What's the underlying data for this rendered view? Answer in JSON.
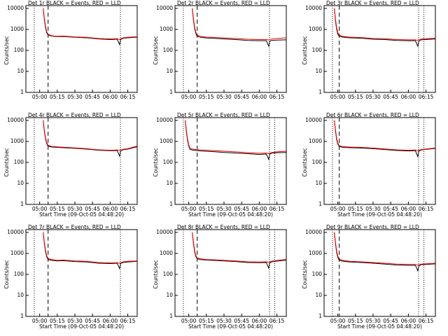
{
  "chart_data": [
    {
      "type": "line",
      "title": "Det 1r BLACK = Events, RED = LLD",
      "ylabel": "Counts/sec",
      "log_y": true,
      "x": [
        303,
        304,
        305,
        306,
        307,
        310,
        315,
        320,
        330,
        340,
        350,
        360,
        366,
        368,
        369,
        371,
        375,
        383
      ],
      "series": [
        {
          "color": "#000000",
          "values": [
            10000,
            3000,
            1200,
            700,
            550,
            480,
            450,
            460,
            420,
            400,
            350,
            330,
            340,
            190,
            330,
            380,
            400,
            430
          ]
        },
        {
          "color": "#ff0000",
          "values": [
            10000,
            3500,
            1400,
            800,
            600,
            500,
            470,
            480,
            440,
            420,
            370,
            350,
            360,
            330,
            360,
            400,
            420,
            450
          ]
        }
      ],
      "xlim": [
        288.3,
        383
      ],
      "ylim": [
        1,
        10000
      ],
      "xticks": [
        {
          "value": 300,
          "label": "05:00"
        },
        {
          "value": 315,
          "label": "05:15"
        },
        {
          "value": 330,
          "label": "05:30"
        },
        {
          "value": 345,
          "label": "05:45"
        },
        {
          "value": 360,
          "label": "06:00"
        },
        {
          "value": 375,
          "label": "06:15"
        }
      ],
      "yticks": [
        1,
        10,
        100,
        1000,
        10000
      ],
      "vlines": [
        {
          "x": 295.4,
          "style": "dotted"
        },
        {
          "x": 307.2,
          "style": "dashed"
        },
        {
          "x": 368.7,
          "style": "dotted"
        }
      ]
    },
    {
      "type": "line",
      "title": "Det 2r BLACK = Events, RED = LLD",
      "ylabel": "Counts/sec",
      "log_y": true,
      "x": [
        303,
        304,
        305,
        306,
        307,
        310,
        315,
        320,
        330,
        340,
        350,
        360,
        366,
        368,
        369,
        371,
        375,
        383
      ],
      "series": [
        {
          "color": "#000000",
          "values": [
            10000,
            2800,
            1100,
            650,
            480,
            420,
            390,
            380,
            350,
            330,
            300,
            290,
            290,
            160,
            280,
            300,
            310,
            320
          ]
        },
        {
          "color": "#ff0000",
          "values": [
            10000,
            3300,
            1300,
            750,
            540,
            470,
            430,
            420,
            390,
            370,
            340,
            330,
            330,
            310,
            330,
            350,
            370,
            400
          ]
        }
      ],
      "xlim": [
        288.3,
        383
      ],
      "ylim": [
        1,
        10000
      ],
      "xticks": [
        {
          "value": 300,
          "label": "05:00"
        },
        {
          "value": 315,
          "label": "05:15"
        },
        {
          "value": 330,
          "label": "05:30"
        },
        {
          "value": 345,
          "label": "05:45"
        },
        {
          "value": 360,
          "label": "06:00"
        },
        {
          "value": 375,
          "label": "06:15"
        }
      ],
      "yticks": [
        1,
        10,
        100,
        1000,
        10000
      ],
      "vlines": [
        {
          "x": 295.4,
          "style": "dotted"
        },
        {
          "x": 307.2,
          "style": "dashed"
        },
        {
          "x": 368.7,
          "style": "dotted"
        }
      ]
    },
    {
      "type": "line",
      "title": "Det 3r BLACK = Events, RED = LLD",
      "ylabel": "Counts/sec",
      "log_y": true,
      "x": [
        297,
        298,
        299,
        300,
        301,
        304,
        310,
        320,
        330,
        340,
        350,
        360,
        366,
        368,
        369,
        371,
        375,
        383
      ],
      "series": [
        {
          "color": "#000000",
          "values": [
            10000,
            2500,
            1000,
            600,
            480,
            430,
            400,
            380,
            340,
            330,
            300,
            290,
            290,
            160,
            280,
            320,
            330,
            350
          ]
        },
        {
          "color": "#ff0000",
          "values": [
            10000,
            3000,
            1200,
            700,
            540,
            470,
            430,
            410,
            370,
            360,
            330,
            320,
            320,
            300,
            320,
            350,
            360,
            380
          ]
        }
      ],
      "xlim": [
        288.3,
        383
      ],
      "ylim": [
        1,
        10000
      ],
      "xticks": [
        {
          "value": 300,
          "label": "05:00"
        },
        {
          "value": 315,
          "label": "05:15"
        },
        {
          "value": 330,
          "label": "05:30"
        },
        {
          "value": 345,
          "label": "05:45"
        },
        {
          "value": 360,
          "label": "06:00"
        },
        {
          "value": 375,
          "label": "06:15"
        }
      ],
      "yticks": [
        1,
        10,
        100,
        1000,
        10000
      ],
      "vlines": [
        {
          "x": 295.4,
          "style": "dotted"
        },
        {
          "x": 301.2,
          "style": "dashed"
        },
        {
          "x": 368.7,
          "style": "dotted"
        },
        {
          "x": 373.2,
          "style": "dotted"
        }
      ]
    },
    {
      "type": "line",
      "title": "Det 4r BLACK = Events, RED = LLD",
      "ylabel": "Counts/sec",
      "xlabel": "Start Time (09-Oct-05 04:48:20)",
      "log_y": true,
      "x": [
        303,
        304,
        305,
        306,
        307,
        310,
        315,
        320,
        330,
        340,
        350,
        360,
        366,
        368,
        369,
        371,
        375,
        383
      ],
      "series": [
        {
          "color": "#000000",
          "values": [
            10000,
            3000,
            1300,
            800,
            600,
            540,
            520,
            500,
            470,
            430,
            380,
            360,
            370,
            200,
            360,
            400,
            430,
            560
          ]
        },
        {
          "color": "#ff0000",
          "values": [
            10000,
            3500,
            1500,
            900,
            660,
            580,
            550,
            530,
            490,
            450,
            400,
            380,
            390,
            370,
            380,
            420,
            450,
            600
          ]
        }
      ],
      "xlim": [
        288.3,
        383
      ],
      "ylim": [
        1,
        10000
      ],
      "xticks": [
        {
          "value": 300,
          "label": "05:00"
        },
        {
          "value": 315,
          "label": "05:15"
        },
        {
          "value": 330,
          "label": "05:30"
        },
        {
          "value": 345,
          "label": "05:45"
        },
        {
          "value": 360,
          "label": "06:00"
        },
        {
          "value": 375,
          "label": "06:15"
        }
      ],
      "yticks": [
        1,
        10,
        100,
        1000,
        10000
      ],
      "vlines": [
        {
          "x": 295.4,
          "style": "dotted"
        },
        {
          "x": 307.2,
          "style": "dashed"
        },
        {
          "x": 368.7,
          "style": "dotted"
        }
      ]
    },
    {
      "type": "line",
      "title": "Det 5r BLACK = Events, RED = LLD",
      "ylabel": "Counts/sec",
      "xlabel": "Start Time (09-Oct-05 04:48:20)",
      "log_y": true,
      "x": [
        297,
        298,
        299,
        300,
        301,
        304,
        310,
        320,
        330,
        340,
        350,
        360,
        366,
        368,
        369,
        371,
        375,
        383
      ],
      "series": [
        {
          "color": "#000000",
          "values": [
            10000,
            2800,
            1100,
            600,
            420,
            380,
            350,
            330,
            300,
            280,
            260,
            240,
            250,
            140,
            250,
            280,
            290,
            300
          ]
        },
        {
          "color": "#ff0000",
          "values": [
            10000,
            3300,
            1300,
            700,
            470,
            420,
            390,
            370,
            340,
            320,
            290,
            270,
            280,
            260,
            280,
            300,
            320,
            340
          ]
        }
      ],
      "xlim": [
        288.3,
        383
      ],
      "ylim": [
        1,
        10000
      ],
      "xticks": [
        {
          "value": 300,
          "label": "05:00"
        },
        {
          "value": 315,
          "label": "05:15"
        },
        {
          "value": 330,
          "label": "05:30"
        },
        {
          "value": 345,
          "label": "05:45"
        },
        {
          "value": 360,
          "label": "06:00"
        },
        {
          "value": 375,
          "label": "06:15"
        }
      ],
      "yticks": [
        1,
        10,
        100,
        1000,
        10000
      ],
      "vlines": [
        {
          "x": 295.4,
          "style": "dotted"
        },
        {
          "x": 307.2,
          "style": "dashed"
        },
        {
          "x": 368.7,
          "style": "dotted"
        },
        {
          "x": 373.2,
          "style": "dotted"
        }
      ]
    },
    {
      "type": "line",
      "title": "Det 6r BLACK = Events, RED = LLD",
      "ylabel": "Counts/sec",
      "xlabel": "Start Time (09-Oct-05 04:48:20)",
      "log_y": true,
      "x": [
        297,
        298,
        299,
        300,
        301,
        304,
        310,
        320,
        330,
        340,
        350,
        360,
        366,
        368,
        369,
        371,
        375,
        383
      ],
      "series": [
        {
          "color": "#000000",
          "values": [
            10000,
            3000,
            1200,
            750,
            580,
            520,
            500,
            480,
            450,
            410,
            370,
            350,
            360,
            190,
            350,
            390,
            420,
            460
          ]
        },
        {
          "color": "#ff0000",
          "values": [
            10000,
            3500,
            1400,
            850,
            640,
            570,
            540,
            520,
            480,
            440,
            400,
            380,
            390,
            360,
            380,
            410,
            440,
            480
          ]
        }
      ],
      "xlim": [
        288.3,
        383
      ],
      "ylim": [
        1,
        10000
      ],
      "xticks": [
        {
          "value": 300,
          "label": "05:00"
        },
        {
          "value": 315,
          "label": "05:15"
        },
        {
          "value": 330,
          "label": "05:30"
        },
        {
          "value": 345,
          "label": "05:45"
        },
        {
          "value": 360,
          "label": "06:00"
        },
        {
          "value": 375,
          "label": "06:15"
        }
      ],
      "yticks": [
        1,
        10,
        100,
        1000,
        10000
      ],
      "vlines": [
        {
          "x": 295.4,
          "style": "dotted"
        },
        {
          "x": 301.2,
          "style": "dashed"
        },
        {
          "x": 368.7,
          "style": "dotted"
        },
        {
          "x": 373.2,
          "style": "dotted"
        }
      ]
    },
    {
      "type": "line",
      "title": "Det 7r BLACK = Events, RED = LLD",
      "ylabel": "Counts/sec",
      "xlabel": "Start Time (09-Oct-05 04:48:20)",
      "log_y": true,
      "x": [
        303,
        304,
        305,
        306,
        307,
        310,
        315,
        320,
        330,
        340,
        350,
        360,
        366,
        368,
        369,
        371,
        375,
        383
      ],
      "series": [
        {
          "color": "#000000",
          "values": [
            10000,
            3000,
            1200,
            700,
            520,
            470,
            440,
            450,
            410,
            390,
            340,
            330,
            340,
            190,
            330,
            370,
            390,
            420
          ]
        },
        {
          "color": "#ff0000",
          "values": [
            10000,
            3500,
            1400,
            800,
            580,
            510,
            470,
            480,
            440,
            420,
            370,
            350,
            360,
            340,
            360,
            400,
            420,
            440
          ]
        }
      ],
      "xlim": [
        288.3,
        383
      ],
      "ylim": [
        1,
        10000
      ],
      "xticks": [
        {
          "value": 300,
          "label": "05:00"
        },
        {
          "value": 315,
          "label": "05:15"
        },
        {
          "value": 330,
          "label": "05:30"
        },
        {
          "value": 345,
          "label": "05:45"
        },
        {
          "value": 360,
          "label": "06:00"
        },
        {
          "value": 375,
          "label": "06:15"
        }
      ],
      "yticks": [
        1,
        10,
        100,
        1000,
        10000
      ],
      "vlines": [
        {
          "x": 295.4,
          "style": "dotted"
        },
        {
          "x": 307.2,
          "style": "dashed"
        },
        {
          "x": 368.7,
          "style": "dotted"
        }
      ]
    },
    {
      "type": "line",
      "title": "Det 8r BLACK = Events, RED = LLD",
      "ylabel": "Counts/sec",
      "xlabel": "Start Time (09-Oct-05 04:48:20)",
      "log_y": true,
      "x": [
        303,
        304,
        305,
        306,
        307,
        310,
        315,
        320,
        330,
        340,
        350,
        360,
        366,
        368,
        369,
        371,
        375,
        383
      ],
      "series": [
        {
          "color": "#000000",
          "values": [
            10000,
            3000,
            1200,
            720,
            560,
            510,
            480,
            470,
            440,
            410,
            370,
            360,
            370,
            200,
            360,
            400,
            430,
            480
          ]
        },
        {
          "color": "#ff0000",
          "values": [
            10000,
            3500,
            1400,
            820,
            620,
            550,
            510,
            500,
            470,
            440,
            400,
            390,
            400,
            370,
            390,
            430,
            460,
            520
          ]
        }
      ],
      "xlim": [
        288.3,
        383
      ],
      "ylim": [
        1,
        10000
      ],
      "xticks": [
        {
          "value": 300,
          "label": "05:00"
        },
        {
          "value": 315,
          "label": "05:15"
        },
        {
          "value": 330,
          "label": "05:30"
        },
        {
          "value": 345,
          "label": "05:45"
        },
        {
          "value": 360,
          "label": "06:00"
        },
        {
          "value": 375,
          "label": "06:15"
        }
      ],
      "yticks": [
        1,
        10,
        100,
        1000,
        10000
      ],
      "vlines": [
        {
          "x": 295.4,
          "style": "dotted"
        },
        {
          "x": 307.2,
          "style": "dashed"
        },
        {
          "x": 368.7,
          "style": "dotted"
        },
        {
          "x": 373.2,
          "style": "dotted"
        }
      ]
    },
    {
      "type": "line",
      "title": "Det 9r BLACK = Events, RED = LLD",
      "ylabel": "Counts/sec",
      "xlabel": "Start Time (09-Oct-05 04:48:20)",
      "log_y": true,
      "x": [
        297,
        298,
        299,
        300,
        301,
        304,
        310,
        320,
        330,
        340,
        350,
        360,
        366,
        368,
        369,
        371,
        375,
        383
      ],
      "series": [
        {
          "color": "#000000",
          "values": [
            10000,
            2800,
            1100,
            650,
            480,
            430,
            390,
            370,
            340,
            310,
            280,
            270,
            270,
            150,
            260,
            290,
            300,
            320
          ]
        },
        {
          "color": "#ff0000",
          "values": [
            10000,
            3300,
            1300,
            750,
            540,
            470,
            420,
            400,
            370,
            340,
            310,
            300,
            300,
            280,
            290,
            310,
            320,
            340
          ]
        }
      ],
      "xlim": [
        288.3,
        383
      ],
      "ylim": [
        1,
        10000
      ],
      "xticks": [
        {
          "value": 300,
          "label": "05:00"
        },
        {
          "value": 315,
          "label": "05:15"
        },
        {
          "value": 330,
          "label": "05:30"
        },
        {
          "value": 345,
          "label": "05:45"
        },
        {
          "value": 360,
          "label": "06:00"
        },
        {
          "value": 375,
          "label": "06:15"
        }
      ],
      "yticks": [
        1,
        10,
        100,
        1000,
        10000
      ],
      "vlines": [
        {
          "x": 295.4,
          "style": "dotted"
        },
        {
          "x": 301.2,
          "style": "dashed"
        },
        {
          "x": 368.7,
          "style": "dotted"
        },
        {
          "x": 373.2,
          "style": "dotted"
        }
      ]
    }
  ]
}
